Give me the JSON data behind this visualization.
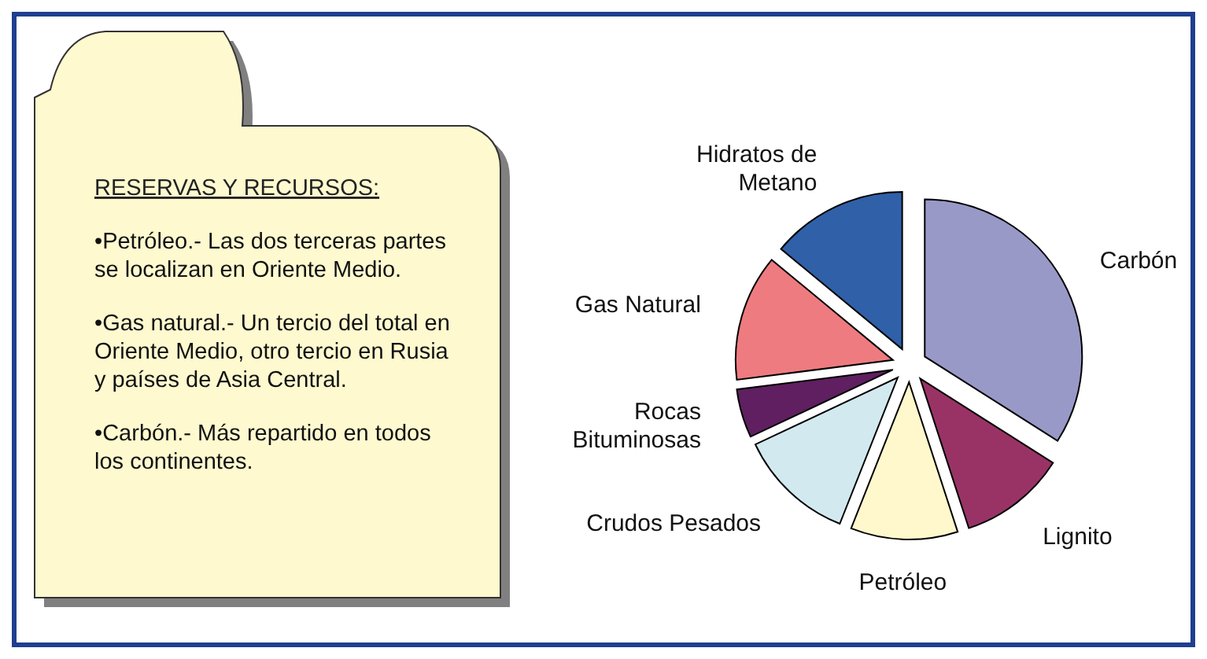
{
  "chart_data": [
    {
      "type": "other",
      "title": "RESERVAS Y RECURSOS:",
      "annotations": [
        "•Petróleo.- Las dos terceras partes se localizan en Oriente Medio.",
        "•Gas natural.- Un tercio del total en Oriente Medio, otro tercio en Rusia y países de Asia Central.",
        "•Carbón.- Más repartido en todos los continentes."
      ]
    },
    {
      "type": "pie",
      "categories": [
        "Carbón",
        "Lignito",
        "Petróleo",
        "Crudos Pesados",
        "Rocas Bituminosas",
        "Gas Natural",
        "Hidratos de Metano"
      ],
      "values": [
        34,
        11,
        11,
        12,
        5,
        13,
        14
      ],
      "colors": [
        "#9999c8",
        "#993366",
        "#fff8cc",
        "#d2e9f0",
        "#5f1f60",
        "#ee7b80",
        "#3060a8"
      ]
    }
  ]
}
